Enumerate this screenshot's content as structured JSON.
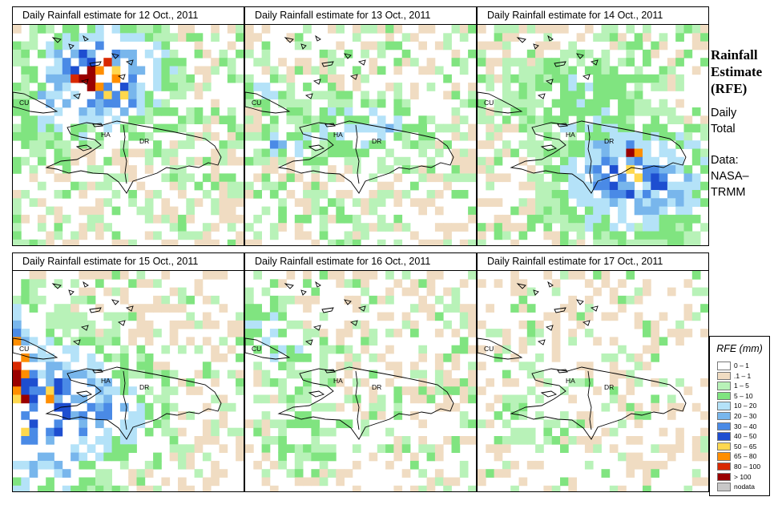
{
  "sidebar": {
    "title_lines": [
      "Rainfall",
      "Estimate",
      "(RFE)"
    ],
    "subtitle_lines": [
      "Daily",
      "Total"
    ],
    "source_lines": [
      "Data:",
      "NASA–",
      "TRMM"
    ]
  },
  "legend": {
    "title": "RFE (mm)",
    "items": [
      {
        "label": "0 – 1",
        "color": "#ffffff"
      },
      {
        "label": ".1 – 1",
        "color": "#f0dcc2"
      },
      {
        "label": "1 – 5",
        "color": "#b8f2b8"
      },
      {
        "label": "5 – 10",
        "color": "#80e480"
      },
      {
        "label": "10 – 20",
        "color": "#b4e2f8"
      },
      {
        "label": "20 – 30",
        "color": "#78b6ec"
      },
      {
        "label": "30 – 40",
        "color": "#4a8ae6"
      },
      {
        "label": "40 – 50",
        "color": "#1e4ed0"
      },
      {
        "label": "50 – 65",
        "color": "#ffd84e"
      },
      {
        "label": "65 – 80",
        "color": "#ff8e00"
      },
      {
        "label": "80 – 100",
        "color": "#d82800"
      },
      {
        "label": "> 100",
        "color": "#9a0000"
      },
      {
        "label": "nodata",
        "color": "#c8c8c8"
      }
    ]
  },
  "map_labels": {
    "cuba": "CU",
    "haiti": "HA",
    "dominican_republic": "DR"
  },
  "panels": [
    {
      "title": "Daily Rainfall estimate for  12 Oct., 2011",
      "date": "12 Oct., 2011"
    },
    {
      "title": "Daily Rainfall estimate for  13 Oct., 2011",
      "date": "13 Oct., 2011"
    },
    {
      "title": "Daily Rainfall estimate for  14 Oct., 2011",
      "date": "14 Oct., 2011"
    },
    {
      "title": "Daily Rainfall estimate for  15 Oct., 2011",
      "date": "15 Oct., 2011"
    },
    {
      "title": "Daily Rainfall estimate for  16 Oct., 2011",
      "date": "16 Oct., 2011"
    },
    {
      "title": "Daily Rainfall estimate for  17 Oct., 2011",
      "date": "17 Oct., 2011"
    }
  ]
}
